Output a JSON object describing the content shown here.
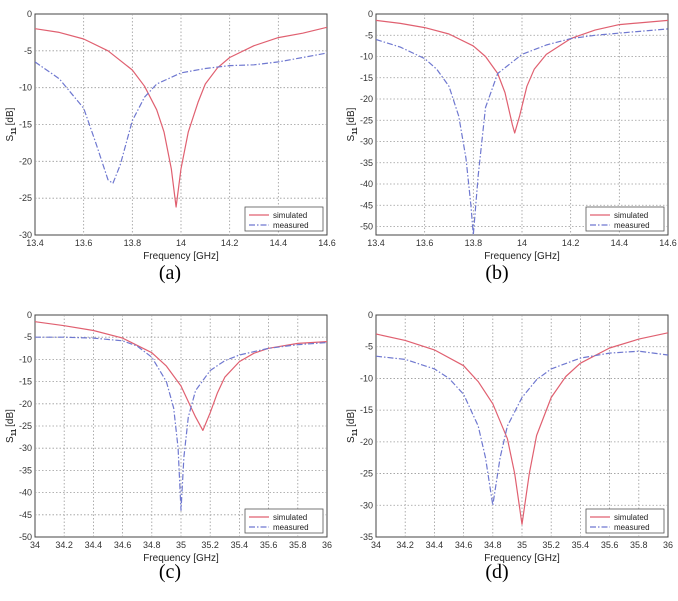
{
  "colors": {
    "simulated": "#e06070",
    "measured": "#6f78d0",
    "grid": "#9a9a9a",
    "axis": "#444444"
  },
  "legend": {
    "simulated_label": "simulated",
    "measured_label": "measured"
  },
  "chart_data": [
    {
      "type": "line",
      "caption": "(a)",
      "xlabel": "Frequency [GHz]",
      "ylabel": "S",
      "ylabel_sub": "11",
      "ylabel_unit": "[dB]",
      "xlim": [
        13.4,
        14.6
      ],
      "ylim": [
        -30,
        0
      ],
      "xticks": [
        13.4,
        13.6,
        13.8,
        14,
        14.2,
        14.4,
        14.6
      ],
      "xtick_labels": [
        "13.4",
        "13.6",
        "13.8",
        "14",
        "14.2",
        "14.4",
        "14.6"
      ],
      "yticks": [
        0,
        -5,
        -10,
        -15,
        -20,
        -25,
        -30
      ],
      "ytick_labels": [
        "0",
        "-5",
        "-10",
        "-15",
        "-20",
        "-25",
        "-30"
      ],
      "grid": true,
      "legend_position": "bottom-right",
      "series": [
        {
          "name": "simulated",
          "style": "solid",
          "x": [
            13.4,
            13.5,
            13.6,
            13.7,
            13.8,
            13.85,
            13.9,
            13.93,
            13.96,
            13.98,
            14.0,
            14.03,
            14.07,
            14.1,
            14.15,
            14.2,
            14.3,
            14.4,
            14.5,
            14.6
          ],
          "y": [
            -2.0,
            -2.5,
            -3.4,
            -5.0,
            -7.6,
            -9.8,
            -13.0,
            -16.0,
            -21.0,
            -26.2,
            -21.0,
            -16.0,
            -12.0,
            -9.5,
            -7.3,
            -5.9,
            -4.3,
            -3.2,
            -2.6,
            -1.8
          ]
        },
        {
          "name": "measured",
          "style": "dashdot",
          "x": [
            13.4,
            13.5,
            13.6,
            13.65,
            13.7,
            13.72,
            13.75,
            13.8,
            13.85,
            13.9,
            14.0,
            14.1,
            14.2,
            14.3,
            14.4,
            14.5,
            14.6
          ],
          "y": [
            -6.5,
            -8.8,
            -12.8,
            -17.5,
            -22.5,
            -23.0,
            -20.5,
            -14.5,
            -11.3,
            -9.5,
            -8.0,
            -7.4,
            -7.0,
            -6.9,
            -6.5,
            -5.9,
            -5.3
          ]
        }
      ]
    },
    {
      "type": "line",
      "caption": "(b)",
      "xlabel": "Frequency [GHz]",
      "ylabel": "S",
      "ylabel_sub": "11",
      "ylabel_unit": "[dB]",
      "xlim": [
        13.4,
        14.6
      ],
      "ylim": [
        -52,
        0
      ],
      "xticks": [
        13.4,
        13.6,
        13.8,
        14,
        14.2,
        14.4,
        14.6
      ],
      "xtick_labels": [
        "13.4",
        "13.6",
        "13.8",
        "14",
        "14.2",
        "14.4",
        "14.6"
      ],
      "yticks": [
        0,
        -5,
        -10,
        -15,
        -20,
        -25,
        -30,
        -35,
        -40,
        -45,
        -50
      ],
      "ytick_labels": [
        "0",
        "-5",
        "-10",
        "-15",
        "-20",
        "-25",
        "-30",
        "-35",
        "-40",
        "-45",
        "-50"
      ],
      "grid": true,
      "legend_position": "bottom-right",
      "series": [
        {
          "name": "simulated",
          "style": "solid",
          "x": [
            13.4,
            13.5,
            13.6,
            13.7,
            13.8,
            13.85,
            13.9,
            13.93,
            13.96,
            13.97,
            13.99,
            14.02,
            14.05,
            14.1,
            14.2,
            14.3,
            14.4,
            14.5,
            14.6
          ],
          "y": [
            -1.5,
            -2.2,
            -3.2,
            -4.7,
            -7.5,
            -10.0,
            -14.0,
            -18.5,
            -26.0,
            -28.0,
            -24.0,
            -17.0,
            -13.0,
            -9.5,
            -5.8,
            -3.8,
            -2.5,
            -2.0,
            -1.5
          ]
        },
        {
          "name": "measured",
          "style": "dashdot",
          "x": [
            13.4,
            13.5,
            13.6,
            13.65,
            13.7,
            13.74,
            13.77,
            13.79,
            13.8,
            13.82,
            13.85,
            13.9,
            14.0,
            14.1,
            14.2,
            14.3,
            14.4,
            14.5,
            14.6
          ],
          "y": [
            -6.0,
            -7.8,
            -10.5,
            -13.0,
            -17.0,
            -24.0,
            -34.0,
            -45.0,
            -52.0,
            -38.0,
            -22.0,
            -14.0,
            -9.5,
            -7.3,
            -5.8,
            -5.0,
            -4.5,
            -4.0,
            -3.5
          ]
        }
      ]
    },
    {
      "type": "line",
      "caption": "(c)",
      "xlabel": "Frequency [GHz]",
      "ylabel": "S",
      "ylabel_sub": "11",
      "ylabel_unit": "[dB]",
      "xlim": [
        34,
        36
      ],
      "ylim": [
        -50,
        0
      ],
      "xticks": [
        34,
        34.2,
        34.4,
        34.6,
        34.8,
        35,
        35.2,
        35.4,
        35.6,
        35.8,
        36
      ],
      "xtick_labels": [
        "34",
        "34.2",
        "34.4",
        "34.6",
        "34.8",
        "35",
        "35.2",
        "35.4",
        "35.6",
        "35.8",
        "36"
      ],
      "yticks": [
        0,
        -5,
        -10,
        -15,
        -20,
        -25,
        -30,
        -35,
        -40,
        -45,
        -50
      ],
      "ytick_labels": [
        "0",
        "-5",
        "-10",
        "-15",
        "-20",
        "-25",
        "-30",
        "-35",
        "-40",
        "-45",
        "-50"
      ],
      "grid": true,
      "legend_position": "bottom-right",
      "series": [
        {
          "name": "simulated",
          "style": "solid",
          "x": [
            34.0,
            34.2,
            34.4,
            34.6,
            34.8,
            34.9,
            35.0,
            35.05,
            35.1,
            35.15,
            35.2,
            35.25,
            35.3,
            35.4,
            35.5,
            35.6,
            35.8,
            36.0
          ],
          "y": [
            -1.5,
            -2.4,
            -3.5,
            -5.2,
            -8.5,
            -11.5,
            -16.0,
            -19.5,
            -23.0,
            -26.0,
            -22.0,
            -17.5,
            -14.0,
            -10.5,
            -8.6,
            -7.5,
            -6.4,
            -6.0
          ]
        },
        {
          "name": "measured",
          "style": "dashdot",
          "x": [
            34.0,
            34.2,
            34.4,
            34.6,
            34.7,
            34.8,
            34.9,
            34.95,
            34.98,
            35.0,
            35.02,
            35.05,
            35.1,
            35.2,
            35.3,
            35.4,
            35.6,
            35.8,
            36.0
          ],
          "y": [
            -5.0,
            -5.0,
            -5.2,
            -5.8,
            -7.0,
            -9.5,
            -15.0,
            -21.0,
            -30.0,
            -44.0,
            -32.0,
            -23.0,
            -17.0,
            -12.5,
            -10.3,
            -9.0,
            -7.5,
            -6.7,
            -6.2
          ]
        }
      ]
    },
    {
      "type": "line",
      "caption": "(d)",
      "xlabel": "Frequency [GHz]",
      "ylabel": "S",
      "ylabel_sub": "11",
      "ylabel_unit": "[dB]",
      "xlim": [
        34,
        36
      ],
      "ylim": [
        -35,
        0
      ],
      "xticks": [
        34,
        34.2,
        34.4,
        34.6,
        34.8,
        35,
        35.2,
        35.4,
        35.6,
        35.8,
        36
      ],
      "xtick_labels": [
        "34",
        "34.2",
        "34.4",
        "34.6",
        "34.8",
        "35",
        "35.2",
        "35.4",
        "35.6",
        "35.8",
        "36"
      ],
      "yticks": [
        0,
        -5,
        -10,
        -15,
        -20,
        -25,
        -30,
        -35
      ],
      "ytick_labels": [
        "0",
        "-5",
        "-10",
        "-15",
        "-20",
        "-25",
        "-30",
        "-35"
      ],
      "grid": true,
      "legend_position": "bottom-right",
      "series": [
        {
          "name": "simulated",
          "style": "solid",
          "x": [
            34.0,
            34.2,
            34.4,
            34.6,
            34.7,
            34.8,
            34.9,
            34.95,
            35.0,
            35.05,
            35.1,
            35.2,
            35.3,
            35.4,
            35.6,
            35.8,
            36.0
          ],
          "y": [
            -3.0,
            -4.0,
            -5.5,
            -8.0,
            -10.5,
            -14.0,
            -19.5,
            -25.0,
            -33.0,
            -25.0,
            -19.0,
            -13.0,
            -9.7,
            -7.6,
            -5.2,
            -3.8,
            -2.8
          ]
        },
        {
          "name": "measured",
          "style": "dashdot",
          "x": [
            34.0,
            34.2,
            34.4,
            34.5,
            34.6,
            34.7,
            34.75,
            34.8,
            34.85,
            34.9,
            35.0,
            35.1,
            35.2,
            35.4,
            35.6,
            35.8,
            36.0
          ],
          "y": [
            -6.5,
            -7.0,
            -8.5,
            -10.0,
            -12.5,
            -17.5,
            -22.5,
            -30.0,
            -22.5,
            -17.5,
            -13.0,
            -10.2,
            -8.5,
            -6.8,
            -6.0,
            -5.7,
            -6.3
          ]
        }
      ]
    }
  ]
}
